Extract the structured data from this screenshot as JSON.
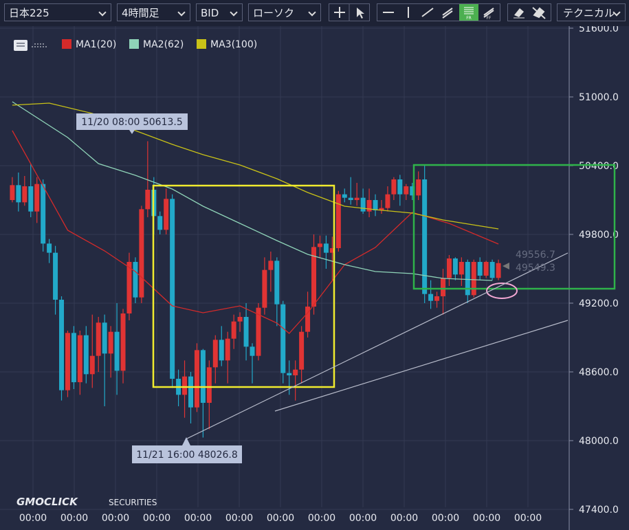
{
  "toolbar": {
    "symbol": "日本225",
    "interval": "4時間足",
    "side": "BID",
    "chart_style": "ローソク",
    "technical": "テクニカル"
  },
  "chart_data": {
    "type": "candlestick",
    "legend": [
      "MA1(20)",
      "MA2(62)",
      "MA3(100)"
    ],
    "up_color": "#e03434",
    "down_color": "#22a9c9",
    "candles": {
      "open": [
        50100,
        50230,
        50080,
        50220,
        50000,
        50240,
        49720,
        49640,
        49230,
        48440,
        48940,
        48510,
        48920,
        48580,
        48740,
        49030,
        48760,
        48950,
        48610,
        49110,
        49560,
        49250,
        50020,
        50190,
        49960,
        49840,
        50110,
        48540,
        48400,
        48560,
        48290,
        48790,
        48330,
        48640,
        48880,
        48700,
        48890,
        49040,
        49080,
        48820,
        48740,
        49160,
        49490,
        49570,
        49190,
        48590,
        48570,
        48620,
        48950,
        49170,
        49690,
        49720,
        49640,
        49680,
        50150,
        50120,
        50100,
        50120,
        50000,
        50100,
        50010,
        50030,
        50150,
        50280,
        50150,
        50220,
        50140,
        50280,
        49280,
        49220,
        49260,
        49420,
        49590,
        49450,
        49560,
        49270,
        49560,
        49440,
        49560,
        49420
      ],
      "high": [
        50300,
        50340,
        50310,
        50420,
        50300,
        50280,
        49760,
        49700,
        49260,
        48960,
        49000,
        48960,
        49000,
        49100,
        49080,
        49100,
        49000,
        49200,
        49150,
        49640,
        49600,
        50050,
        50613.5,
        50300,
        50000,
        50200,
        50150,
        48620,
        48700,
        48600,
        48850,
        48800,
        48700,
        48920,
        49000,
        48950,
        49100,
        49120,
        49200,
        48850,
        49200,
        49600,
        49650,
        49600,
        49220,
        48700,
        48700,
        49000,
        49300,
        49800,
        49790,
        49790,
        49780,
        50180,
        50200,
        50300,
        50250,
        50200,
        50200,
        50150,
        50100,
        50220,
        50300,
        50320,
        50240,
        50250,
        50350,
        50400,
        49400,
        49300,
        49500,
        49620,
        49600,
        49600,
        49580,
        49580,
        49600,
        49570,
        49580,
        49580
      ],
      "low": [
        50080,
        50000,
        50050,
        49950,
        49900,
        49650,
        49550,
        49100,
        48350,
        48380,
        48450,
        48400,
        48500,
        48460,
        48600,
        48300,
        48550,
        48400,
        48500,
        49050,
        49200,
        49200,
        49950,
        49800,
        49800,
        49800,
        48460,
        48300,
        48200,
        48150,
        48250,
        48026.8,
        48100,
        48500,
        48650,
        48500,
        48800,
        48950,
        48700,
        48500,
        48700,
        49100,
        49300,
        49000,
        48500,
        48400,
        48350,
        48500,
        48900,
        49100,
        49600,
        49500,
        49400,
        49650,
        50080,
        50060,
        50050,
        49980,
        49950,
        49960,
        49980,
        50000,
        50100,
        50050,
        50100,
        50100,
        50100,
        49200,
        49150,
        49160,
        49100,
        49350,
        49400,
        49350,
        49200,
        49250,
        49400,
        49420,
        49400,
        49400
      ],
      "close": [
        50230,
        50080,
        50220,
        50000,
        50240,
        49720,
        49640,
        49230,
        48440,
        48940,
        48510,
        48920,
        48580,
        48740,
        49030,
        48760,
        48950,
        48610,
        49110,
        49560,
        49250,
        50020,
        50190,
        49960,
        49840,
        50110,
        48540,
        48400,
        48560,
        48290,
        48790,
        48330,
        48640,
        48880,
        48700,
        48890,
        49040,
        49080,
        48820,
        48740,
        49160,
        49490,
        49570,
        49190,
        48590,
        48570,
        48620,
        48950,
        49170,
        49690,
        49720,
        49640,
        49680,
        50150,
        50120,
        50100,
        50120,
        50000,
        50100,
        50010,
        50030,
        50150,
        50280,
        50150,
        50220,
        50140,
        50280,
        49280,
        49220,
        49260,
        49420,
        49590,
        49450,
        49560,
        49270,
        49560,
        49440,
        49560,
        49420,
        49549.3
      ]
    },
    "series": [
      {
        "name": "MA1(20)",
        "color": "#d42a2a",
        "x": [
          0,
          9,
          15,
          20,
          26,
          31,
          37,
          43,
          45,
          48,
          54,
          59,
          65,
          71,
          79
        ],
        "values": [
          50706,
          49836,
          49656,
          49476,
          49176,
          49116,
          49176,
          49026,
          48936,
          49116,
          49536,
          49686,
          49992,
          49896,
          49716
        ]
      },
      {
        "name": "MA2(62)",
        "color": "#8fd4b8",
        "x": [
          0,
          9,
          14,
          20,
          26,
          31,
          37,
          43,
          48,
          54,
          59,
          65,
          70,
          78
        ],
        "values": [
          50958,
          50646,
          50418,
          50316,
          50196,
          50046,
          49896,
          49746,
          49626,
          49536,
          49476,
          49458,
          49416,
          49398
        ]
      },
      {
        "name": "MA3(100)",
        "color": "#c9c217",
        "x": [
          0,
          6,
          13,
          20,
          26,
          31,
          37,
          43,
          48,
          54,
          59,
          65,
          70,
          79
        ],
        "values": [
          50928,
          50946,
          50856,
          50706,
          50586,
          50496,
          50406,
          50286,
          50166,
          50046,
          50016,
          49986,
          49926,
          49848
        ]
      }
    ],
    "xlim": [
      -2,
      90.5
    ],
    "ylim": [
      47358,
      51630
    ],
    "yticks": [
      {
        "value": 51600,
        "label": "51600.0"
      },
      {
        "value": 51000,
        "label": "51000.0"
      },
      {
        "value": 50400,
        "label": "50400.0"
      },
      {
        "value": 49800,
        "label": "49800.0"
      },
      {
        "value": 49200,
        "label": "49200.0"
      },
      {
        "value": 48600,
        "label": "48600.0"
      },
      {
        "value": 48000,
        "label": "48000.0"
      },
      {
        "value": 47400,
        "label": "47400.0"
      }
    ],
    "x_axis_labels": [
      "00:00",
      "00:00",
      "00:00",
      "00:00",
      "00:00",
      "00:00",
      "00:00",
      "00:00",
      "00:00",
      "00:00",
      "00:00",
      "00:00",
      "00:00"
    ],
    "grid": true,
    "annotations": [
      "11/20 08:00 50613.5",
      "11/21 16:00 48026.8"
    ],
    "price_labels": [
      "49556.7",
      "49549.3"
    ],
    "watermark": [
      "GMOCLICK",
      "SECURITIES"
    ]
  }
}
